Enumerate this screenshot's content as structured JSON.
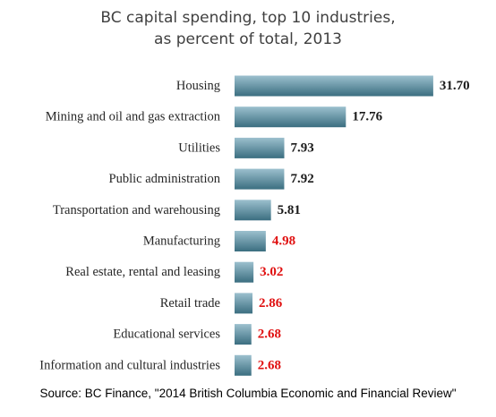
{
  "chart_data": {
    "type": "bar",
    "orientation": "horizontal",
    "title": "BC capital spending, top 10 industries, as percent of total, 2013",
    "title_lines": [
      "BC capital spending, top 10 industries,",
      "as percent of total, 2013"
    ],
    "categories": [
      "Housing",
      "Mining and oil and gas extraction",
      "Utilities",
      "Public administration",
      "Transportation and warehousing",
      "Manufacturing",
      "Real estate, rental and leasing",
      "Retail trade",
      "Educational services",
      "Information and cultural industries"
    ],
    "values": [
      31.7,
      17.76,
      7.93,
      7.92,
      5.81,
      4.98,
      3.02,
      2.86,
      2.68,
      2.68
    ],
    "value_labels": [
      "31.70",
      "17.76",
      "7.93",
      "7.92",
      "5.81",
      "4.98",
      "3.02",
      "2.86",
      "2.68",
      "2.68"
    ],
    "value_label_colors": [
      "#1a1a1a",
      "#1a1a1a",
      "#1a1a1a",
      "#1a1a1a",
      "#1a1a1a",
      "#e01010",
      "#e01010",
      "#e01010",
      "#e01010",
      "#e01010"
    ],
    "xlim": [
      0,
      32
    ],
    "grid": false,
    "legend": "none",
    "bar_color_light": "#9cc0ce",
    "bar_color_dark": "#3b6e80",
    "source": "Source: BC Finance, \"2014 British Columbia Economic and Financial Review\""
  }
}
